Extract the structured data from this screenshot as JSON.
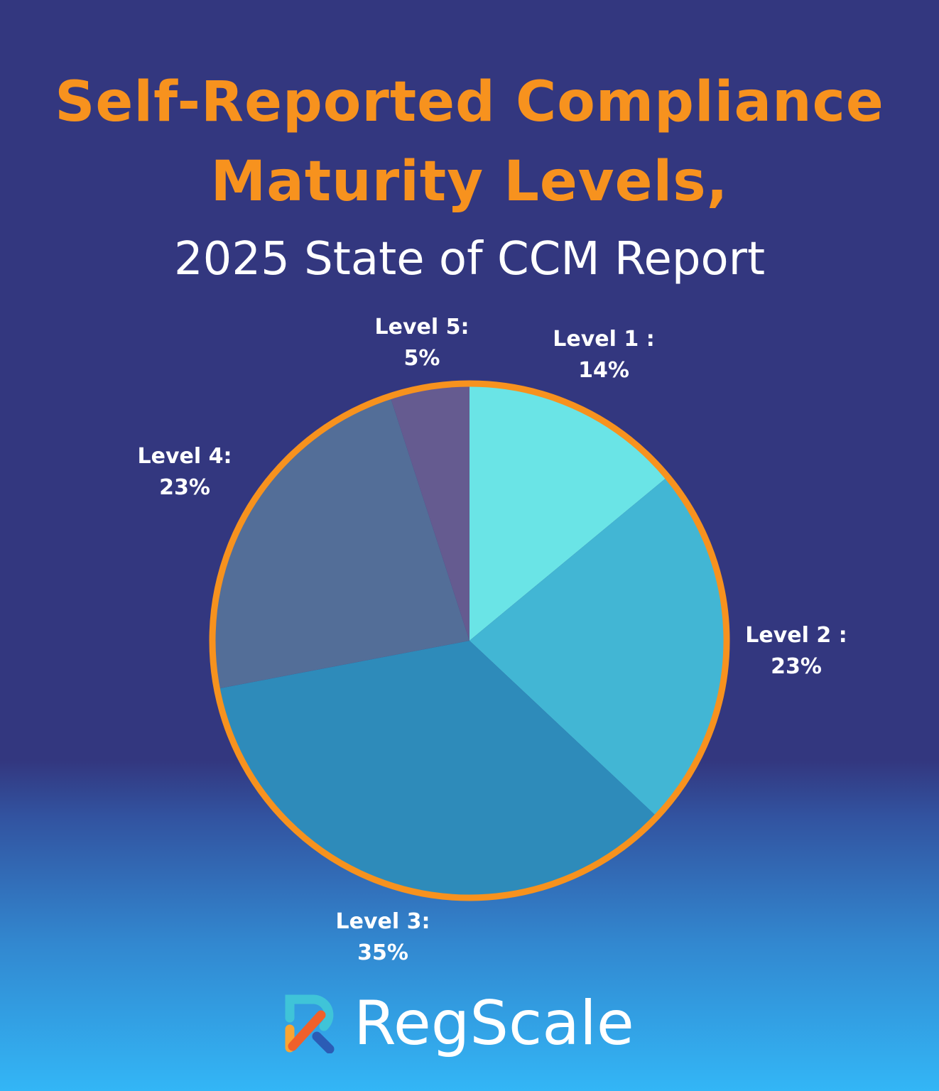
{
  "chart_data": {
    "type": "pie",
    "title": "Self-Reported Compliance Maturity Levels,",
    "subtitle": "2025 State of CCM Report",
    "start_angle": "top, clockwise",
    "slices": [
      {
        "label": "Level 1 :",
        "value": 14,
        "value_label": "14%",
        "color": "#6ae4e6"
      },
      {
        "label": "Level 2 :",
        "value": 23,
        "value_label": "23%",
        "color": "#42b6d4"
      },
      {
        "label": "Level 3:",
        "value": 35,
        "value_label": "35%",
        "color": "#2e8bba"
      },
      {
        "label": "Level 4:",
        "value": 23,
        "value_label": "23%",
        "color": "#536e98"
      },
      {
        "label": "Level 5:",
        "value": 5,
        "value_label": "5%",
        "color": "#655b90"
      }
    ],
    "border_color": "#f7921e"
  },
  "title_lines": [
    "Self-Reported Compliance",
    "Maturity Levels,"
  ],
  "logo": {
    "text": "RegScale"
  }
}
